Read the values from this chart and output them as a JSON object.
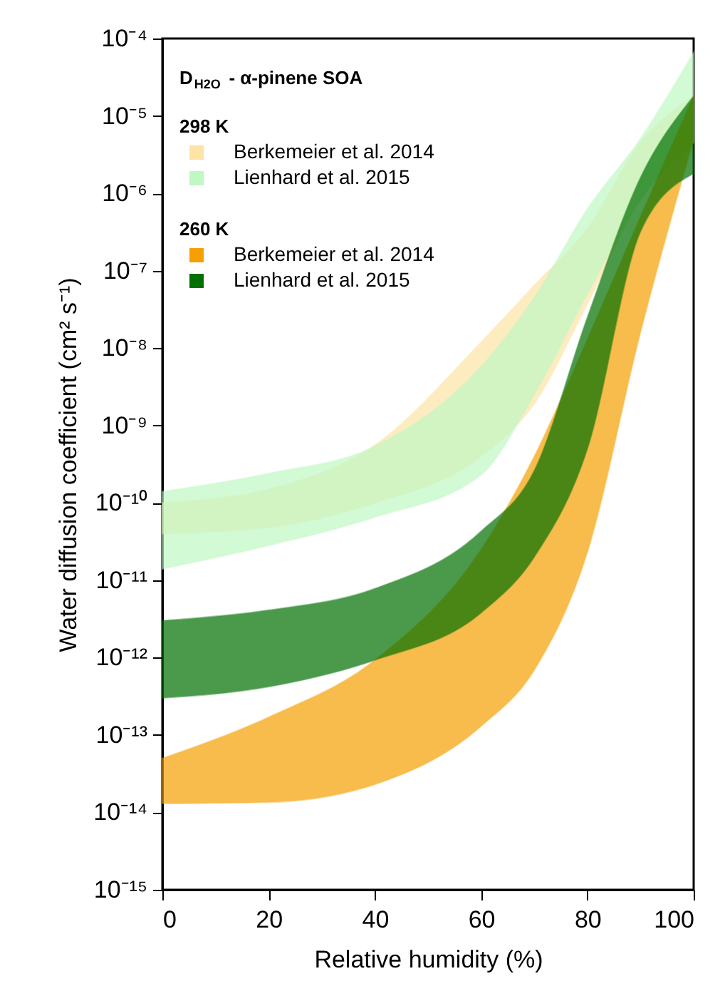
{
  "chart_data": {
    "type": "area",
    "title": "D$_{H2O}$ - α-pinene SOA",
    "xlabel": "Relative humidity (%)",
    "ylabel": "Water diffusion coefficient (cm² s⁻¹)",
    "log": true,
    "xlim": [
      0,
      100
    ],
    "xticks": [
      0,
      20,
      40,
      60,
      80,
      100
    ],
    "ylim": [
      1e-15,
      0.0001
    ],
    "yticks": [
      {
        "value": 0.0001,
        "label": "10⁻⁴"
      },
      {
        "value": 1e-05,
        "label": "10⁻⁵"
      },
      {
        "value": 1e-06,
        "label": "10⁻⁶"
      },
      {
        "value": 1e-07,
        "label": "10⁻⁷"
      },
      {
        "value": 1e-08,
        "label": "10⁻⁸"
      },
      {
        "value": 1e-09,
        "label": "10⁻⁹"
      },
      {
        "value": 1e-10,
        "label": "10⁻¹⁰"
      },
      {
        "value": 1e-11,
        "label": "10⁻¹¹"
      },
      {
        "value": 1e-12,
        "label": "10⁻¹²"
      },
      {
        "value": 1e-13,
        "label": "10⁻¹³"
      },
      {
        "value": 1e-14,
        "label": "10⁻¹⁴"
      },
      {
        "value": 1e-15,
        "label": "10⁻¹⁵"
      }
    ],
    "x": [
      0,
      20,
      40,
      60,
      70,
      80,
      90,
      100
    ],
    "annotations": [
      "298 K",
      "260 K"
    ],
    "legend": "top left",
    "grid": false,
    "series": [
      {
        "name": "Berkemeier et al. 2014",
        "color": "#fde4a6",
        "values": [
          null,
          null,
          null,
          null,
          null,
          null,
          null,
          null
        ],
        "lower": [
          4e-11,
          4.8e-11,
          1e-10,
          4e-10,
          1.9e-09,
          3.7e-08,
          8.3e-07,
          4.5e-06
        ],
        "upper": [
          1e-10,
          1.5e-10,
          5.6e-10,
          1.2e-08,
          6.5e-08,
          3.5e-07,
          4.5e-06,
          1.8e-05
        ]
      },
      {
        "name": "Lienhard et al. 2015",
        "color": "#bff8c3",
        "values": [
          null,
          null,
          null,
          null,
          null,
          null,
          null,
          null
        ],
        "lower": [
          1.4e-11,
          2.8e-11,
          6.5e-11,
          2.3e-10,
          2.5e-09,
          5e-08,
          8.3e-07,
          4.5e-06
        ],
        "upper": [
          1.4e-10,
          2.4e-10,
          5.4e-10,
          5.8e-09,
          4.5e-08,
          6.3e-07,
          5.1e-06,
          6.6e-05
        ]
      },
      {
        "name": "Berkemeier et al. 2014",
        "color": "#f5a000",
        "values": [
          null,
          null,
          null,
          null,
          null,
          null,
          null,
          null
        ],
        "lower": [
          1.3e-14,
          1.35e-14,
          2.3e-14,
          1.3e-13,
          6.9e-13,
          2.3e-11,
          1.6e-08,
          5e-06
        ],
        "upper": [
          5e-14,
          1.7e-13,
          9.3e-13,
          2.5e-11,
          4e-10,
          1.3e-08,
          5e-07,
          1.8e-05
        ]
      },
      {
        "name": "Lienhard et al. 2015",
        "color": "#007000",
        "values": [
          null,
          null,
          null,
          null,
          null,
          null,
          null,
          null
        ],
        "lower": [
          3e-13,
          4.2e-13,
          9.3e-13,
          3.8e-12,
          2e-11,
          5e-10,
          3.2e-07,
          1.8e-06
        ],
        "upper": [
          3e-12,
          4.1e-12,
          7.8e-12,
          4.3e-11,
          2.6e-10,
          2.5e-08,
          1.6e-06,
          1.8e-05
        ]
      }
    ]
  }
}
